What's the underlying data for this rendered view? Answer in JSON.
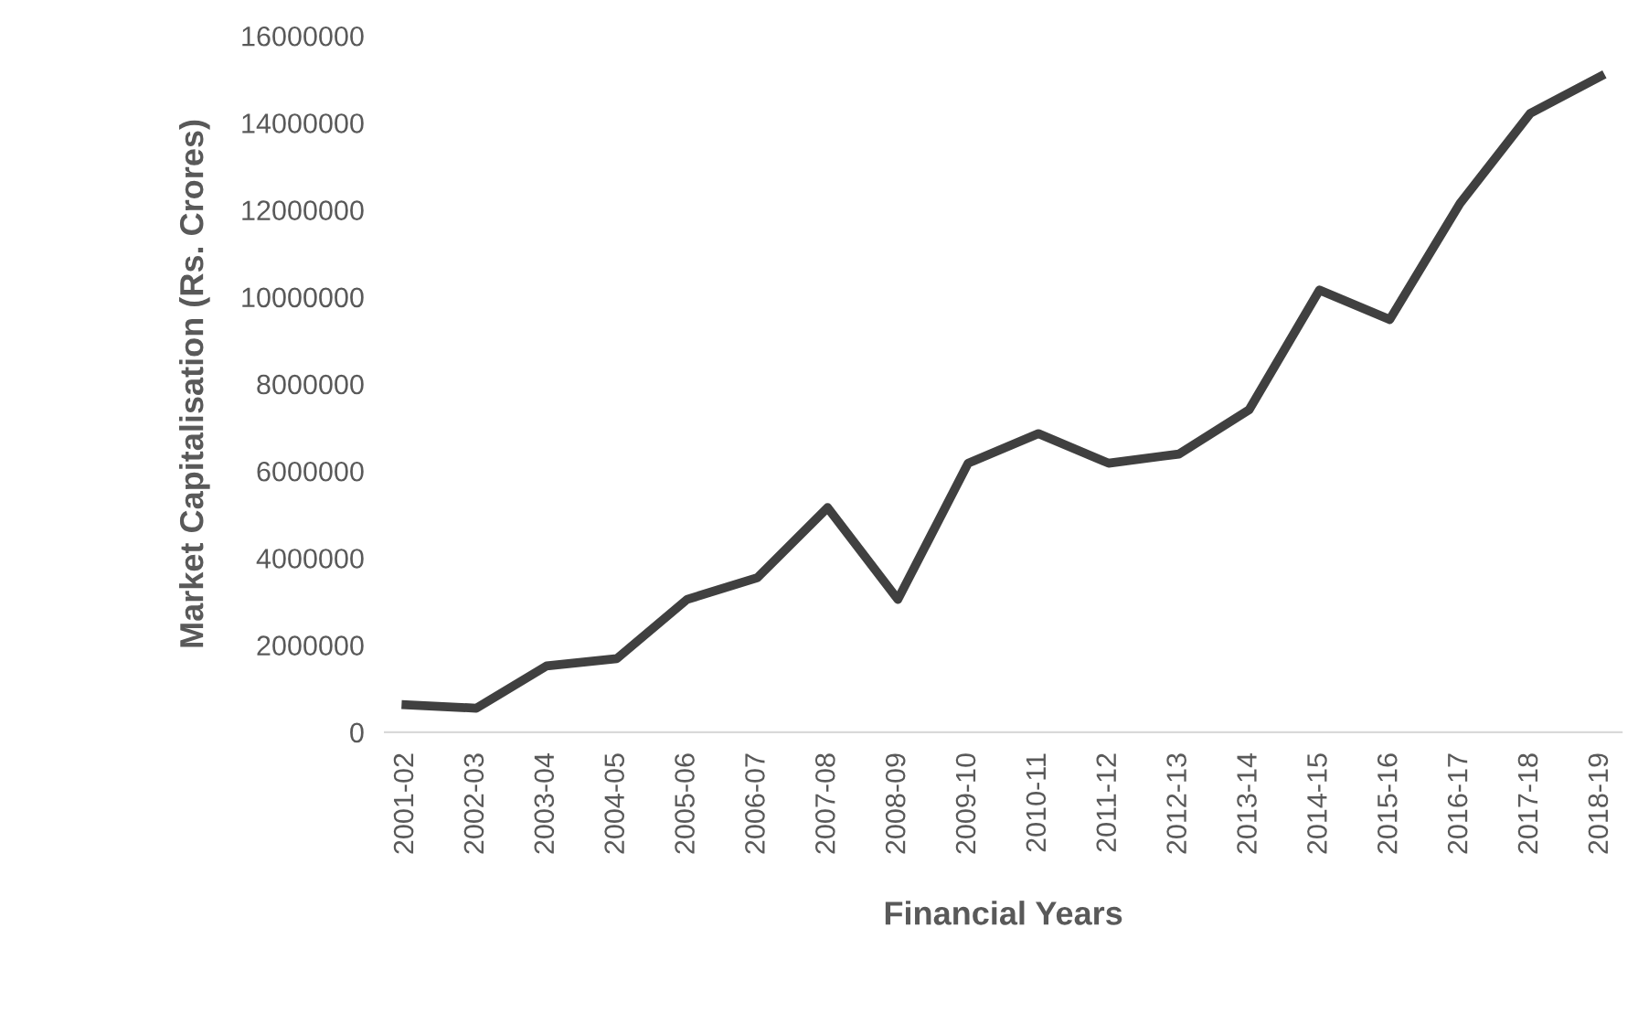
{
  "chart_data": {
    "type": "line",
    "xlabel": "Financial Years",
    "ylabel": "Market Capitalisation (Rs. Crores)",
    "categories": [
      "2001-02",
      "2002-03",
      "2003-04",
      "2004-05",
      "2005-06",
      "2006-07",
      "2007-08",
      "2008-09",
      "2009-10",
      "2010-11",
      "2011-12",
      "2012-13",
      "2013-14",
      "2014-15",
      "2015-16",
      "2016-17",
      "2017-18",
      "2018-19"
    ],
    "series": [
      {
        "color": "#404040",
        "values": [
          630000,
          550000,
          1520000,
          1690000,
          3050000,
          3550000,
          5160000,
          3050000,
          6180000,
          6860000,
          6180000,
          6390000,
          7410000,
          10160000,
          9480000,
          12150000,
          14220000,
          15070000
        ]
      }
    ],
    "ylim": [
      0,
      16000000
    ],
    "yticks": [
      0,
      2000000,
      4000000,
      6000000,
      8000000,
      10000000,
      12000000,
      14000000,
      16000000
    ],
    "grid": false,
    "legend": false,
    "marker": "none",
    "line_style": "solid"
  }
}
